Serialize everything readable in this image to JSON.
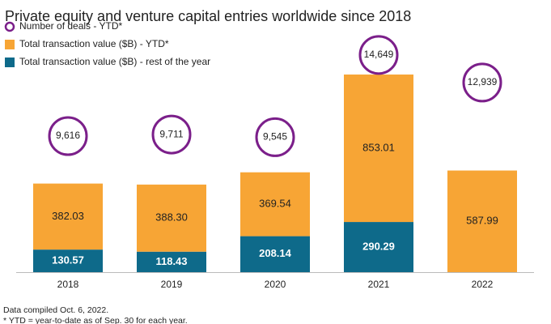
{
  "chart_data": {
    "type": "bar",
    "title": "Private equity and venture capital entries worldwide since 2018",
    "categories": [
      "2018",
      "2019",
      "2020",
      "2021",
      "2022"
    ],
    "series": [
      {
        "name": "Number of deals - YTD*",
        "type": "scatter",
        "color": "#7b1f8a",
        "values": [
          9616,
          9711,
          9545,
          14649,
          12939
        ],
        "value_labels": [
          "9,616",
          "9,711",
          "9,545",
          "14,649",
          "12,939"
        ]
      },
      {
        "name": "Total transaction value ($B) - YTD*",
        "color": "#f7a535",
        "values": [
          382.03,
          388.3,
          369.54,
          853.01,
          587.99
        ],
        "value_labels": [
          "382.03",
          "388.30",
          "369.54",
          "853.01",
          "587.99"
        ]
      },
      {
        "name": "Total transaction value ($B) - rest of the year",
        "color": "#0e6a8a",
        "values": [
          130.57,
          118.43,
          208.14,
          290.29,
          null
        ]
      }
    ],
    "notes": [
      "Data compiled Oct. 6, 2022.",
      "* YTD = year-to-date as of Sep. 30 for each year."
    ]
  }
}
